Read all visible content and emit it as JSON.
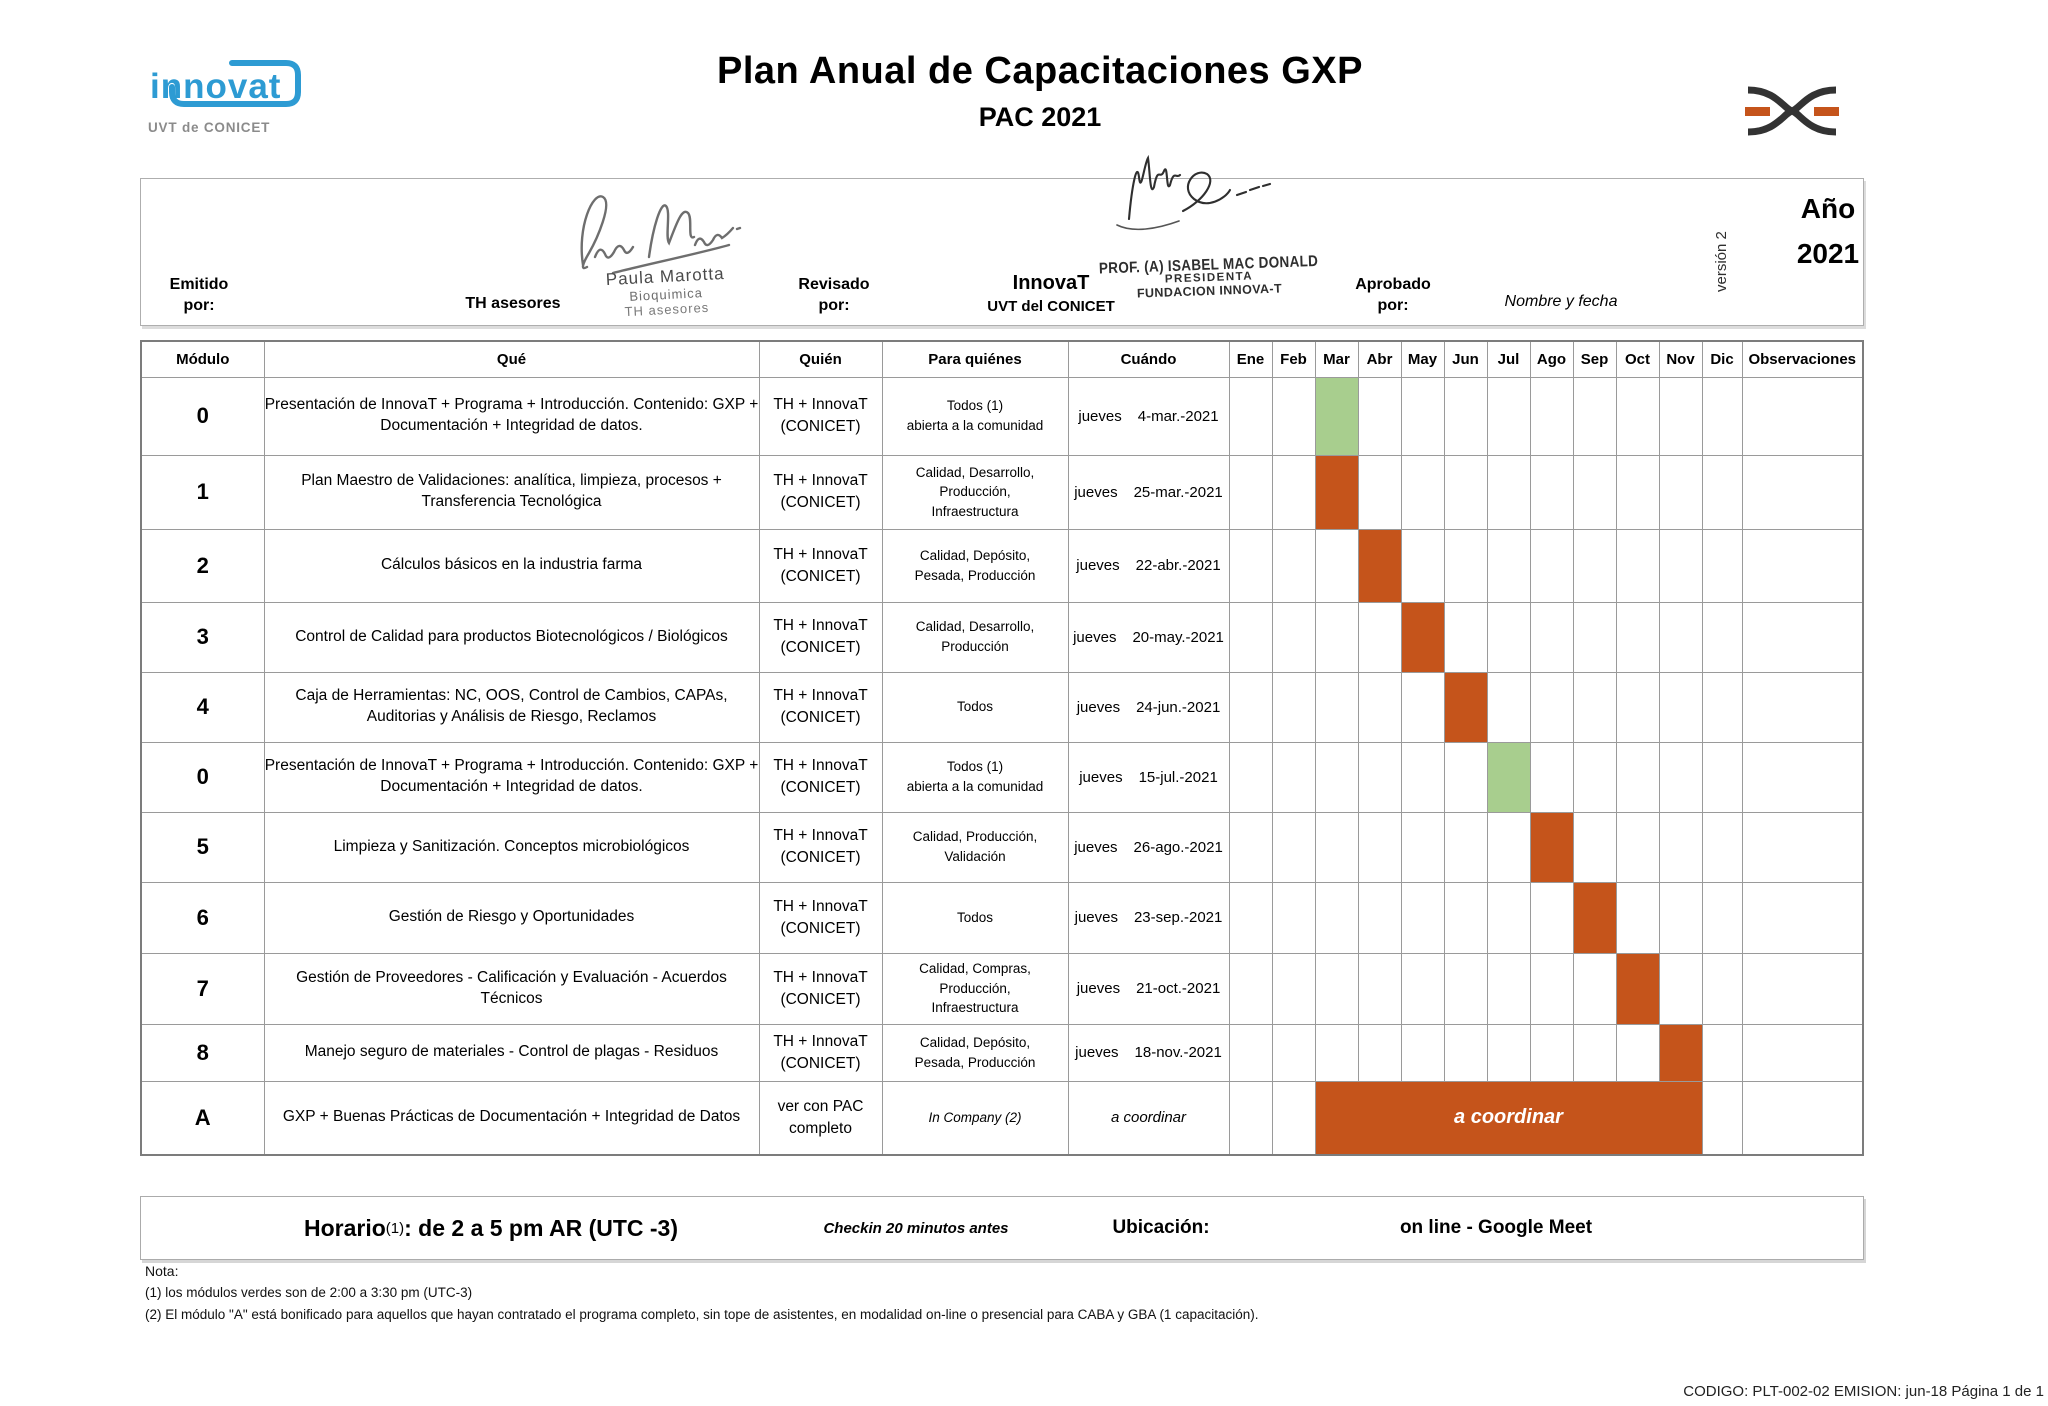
{
  "page": {
    "title": "Plan Anual de Capacitaciones GXP",
    "subtitle": "PAC 2021",
    "footer_code": "CODIGO: PLT-002-02  EMISION: jun-18 Página 1 de 1"
  },
  "logo_left": {
    "wordmark": "innovat",
    "caption": "UVT de CONICET",
    "brand_color": "#2D9BD3"
  },
  "approval": {
    "emitido_label": "Emitido\npor:",
    "emitido_value": "TH asesores",
    "emitido_sign_name": "Paula Marotta",
    "emitido_sign_title": "Bioquimica",
    "emitido_sign_org": "TH asesores",
    "revisado_label": "Revisado\npor:",
    "revisado_value_1": "InnovaT",
    "revisado_value_2": "UVT del CONICET",
    "stamp_line1": "PROF. (A) ISABEL MAC DONALD",
    "stamp_line2": "PRESIDENTA",
    "stamp_line3": "FUNDACION INNOVA-T",
    "aprobado_label": "Aprobado\npor:",
    "aprobado_value": "Nombre y fecha",
    "version": "versión 2",
    "year_label": "Año",
    "year_value": "2021"
  },
  "table": {
    "headers": {
      "modulo": "Módulo",
      "que": "Qué",
      "quien": "Quién",
      "para": "Para quiénes",
      "cuando": "Cuándo",
      "observaciones": "Observaciones"
    },
    "months": [
      "Ene",
      "Feb",
      "Mar",
      "Abr",
      "May",
      "Jun",
      "Jul",
      "Ago",
      "Sep",
      "Oct",
      "Nov",
      "Dic"
    ],
    "colors": {
      "orange": "#C5541B",
      "green": "#A8CE8E"
    },
    "rows": [
      {
        "modulo": "0",
        "que": "Presentación de InnovaT + Programa + Introducción. Contenido: GXP + Documentación + Integridad de datos.",
        "quien": "TH + InnovaT\n(CONICET)",
        "para": "Todos (1)\nabierta a la comunidad",
        "dia": "jueves",
        "fecha": "4-mar.-2021",
        "mes": "Mar",
        "color": "green"
      },
      {
        "modulo": "1",
        "que": "Plan Maestro de Validaciones: analítica, limpieza, procesos + Transferencia Tecnológica",
        "quien": "TH + InnovaT\n(CONICET)",
        "para": "Calidad, Desarrollo,\nProducción,\nInfraestructura",
        "dia": "jueves",
        "fecha": "25-mar.-2021",
        "mes": "Mar",
        "color": "orange"
      },
      {
        "modulo": "2",
        "que": "Cálculos básicos en la industria farma",
        "quien": "TH + InnovaT\n(CONICET)",
        "para": "Calidad, Depósito,\nPesada, Producción",
        "dia": "jueves",
        "fecha": "22-abr.-2021",
        "mes": "Abr",
        "color": "orange"
      },
      {
        "modulo": "3",
        "que": "Control de Calidad para productos Biotecnológicos / Biológicos",
        "quien": "TH + InnovaT\n(CONICET)",
        "para": "Calidad, Desarrollo,\nProducción",
        "dia": "jueves",
        "fecha": "20-may.-2021",
        "mes": "May",
        "color": "orange"
      },
      {
        "modulo": "4",
        "que": "Caja de Herramientas: NC, OOS, Control de Cambios, CAPAs, Auditorias y Análisis de Riesgo, Reclamos",
        "quien": "TH + InnovaT\n(CONICET)",
        "para": "Todos",
        "dia": "jueves",
        "fecha": "24-jun.-2021",
        "mes": "Jun",
        "color": "orange"
      },
      {
        "modulo": "0",
        "que": "Presentación de InnovaT + Programa + Introducción. Contenido: GXP + Documentación + Integridad de datos.",
        "quien": "TH + InnovaT\n(CONICET)",
        "para": "Todos (1)\nabierta a la comunidad",
        "dia": "jueves",
        "fecha": "15-jul.-2021",
        "mes": "Jul",
        "color": "green"
      },
      {
        "modulo": "5",
        "que": "Limpieza y Sanitización. Conceptos microbiológicos",
        "quien": "TH + InnovaT\n(CONICET)",
        "para": "Calidad, Producción,\nValidación",
        "dia": "jueves",
        "fecha": "26-ago.-2021",
        "mes": "Ago",
        "color": "orange"
      },
      {
        "modulo": "6",
        "que": "Gestión de Riesgo y Oportunidades",
        "quien": "TH + InnovaT\n(CONICET)",
        "para": "Todos",
        "dia": "jueves",
        "fecha": "23-sep.-2021",
        "mes": "Sep",
        "color": "orange"
      },
      {
        "modulo": "7",
        "que": "Gestión de Proveedores - Calificación y Evaluación - Acuerdos Técnicos",
        "quien": "TH + InnovaT\n(CONICET)",
        "para": "Calidad, Compras,\nProducción,\nInfraestructura",
        "dia": "jueves",
        "fecha": "21-oct.-2021",
        "mes": "Oct",
        "color": "orange"
      },
      {
        "modulo": "8",
        "que": "Manejo seguro de materiales - Control de plagas - Residuos",
        "quien": "TH + InnovaT\n(CONICET)",
        "para": "Calidad, Depósito,\nPesada, Producción",
        "dia": "jueves",
        "fecha": "18-nov.-2021",
        "mes": "Nov",
        "color": "orange"
      },
      {
        "modulo": "A",
        "que": "GXP + Buenas Prácticas de Documentación + Integridad de Datos",
        "quien": "ver con PAC\ncompleto",
        "para": "In Company (2)",
        "para_italic": true,
        "fecha": "a coordinar",
        "fecha_italic": true,
        "bar": {
          "from": "Mar",
          "to": "Nov",
          "label": "a coordinar",
          "color": "orange"
        }
      }
    ]
  },
  "timebar": {
    "horario_label": "Horario",
    "horario_sup": "(1)",
    "horario_value": ": de 2 a 5 pm AR (UTC -3)",
    "checkin": "Checkin 20 minutos antes",
    "ubicacion_label": "Ubicación:",
    "ubicacion_value": "on line - Google Meet"
  },
  "notes": {
    "title": "Nota:",
    "line1": "(1) los módulos verdes son de 2:00 a 3:30 pm (UTC-3)",
    "line2": "(2) El módulo \"A\" está bonificado para aquellos que hayan contratado el programa completo,  sin tope de asistentes, en modalidad on-line o presencial para CABA y GBA (1 capacitación)."
  }
}
